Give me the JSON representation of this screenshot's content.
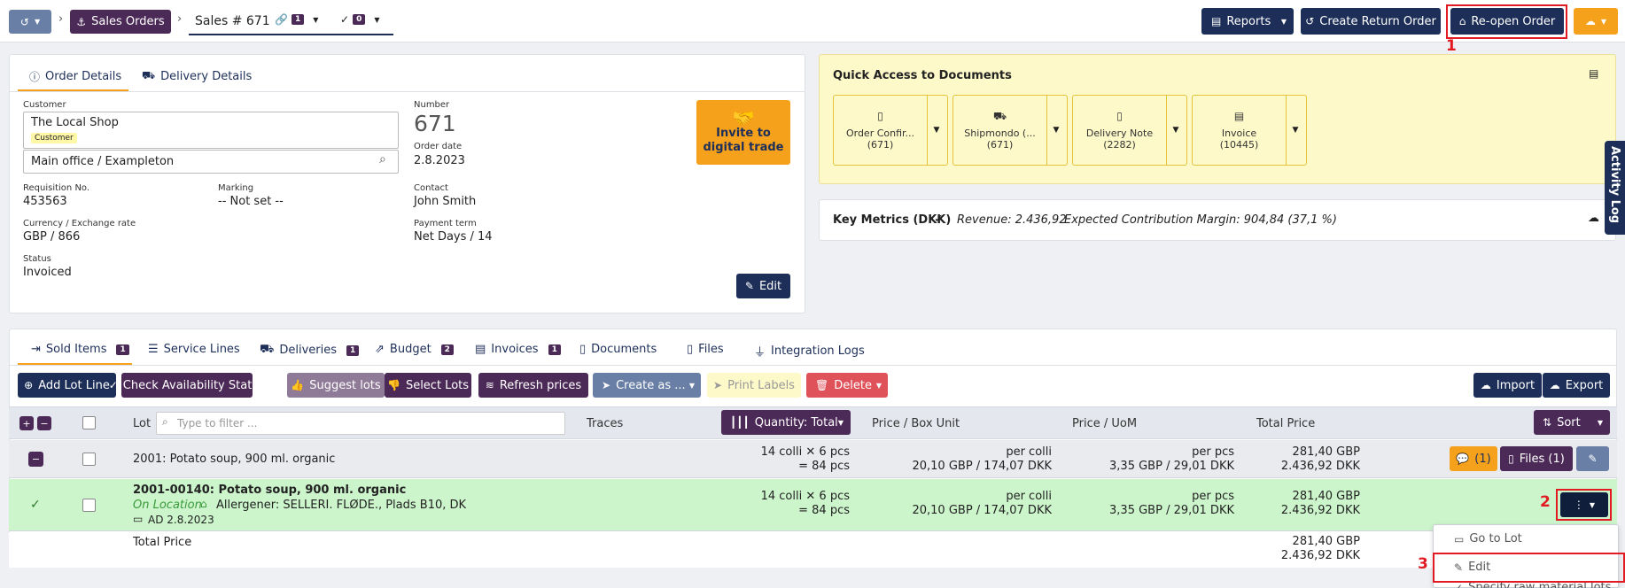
{
  "topbar": {
    "breadcrumb_root": "Sales Orders",
    "page_tab": "Sales # 671",
    "links_count": "1",
    "checks_count": "0",
    "reports": "Reports",
    "create_return": "Create Return Order",
    "reopen": "Re-open Order"
  },
  "order": {
    "tab_details": "Order Details",
    "tab_delivery": "Delivery Details",
    "customer_label": "Customer",
    "customer_name": "The Local Shop",
    "customer_tag": "Customer",
    "address": "Main office / Exampleton",
    "number_label": "Number",
    "number": "671",
    "order_date_label": "Order date",
    "order_date": "2.8.2023",
    "req_label": "Requisition No.",
    "req_value": "453563",
    "marking_label": "Marking",
    "marking_value": "-- Not set --",
    "contact_label": "Contact",
    "contact_value": "John Smith",
    "currency_label": "Currency / Exchange rate",
    "currency_value": "GBP / 866",
    "payment_label": "Payment term",
    "payment_value": "Net Days / 14",
    "status_label": "Status",
    "status_value": "Invoiced",
    "invite_line1": "Invite to",
    "invite_line2": "digital trade",
    "edit": "Edit"
  },
  "quick_access": {
    "title": "Quick Access to Documents",
    "docs": [
      {
        "name": "Order Confir...",
        "num": "(671)"
      },
      {
        "name": "Shipmondo (...",
        "num": "(671)"
      },
      {
        "name": "Delivery Note",
        "num": "(2282)"
      },
      {
        "name": "Invoice",
        "num": "(10445)"
      }
    ]
  },
  "metrics": {
    "label": "Key Metrics (DKK)",
    "revenue": "Revenue: 2.436,92",
    "margin": "Expected Contribution Margin: 904,84 (37,1 %)"
  },
  "activity_log": "Activity Log",
  "tabs": [
    {
      "label": "Sold Items",
      "badge": "1"
    },
    {
      "label": "Service Lines",
      "badge": ""
    },
    {
      "label": "Deliveries",
      "badge": "1"
    },
    {
      "label": "Budget",
      "badge": "2"
    },
    {
      "label": "Invoices",
      "badge": "1"
    },
    {
      "label": "Documents",
      "badge": ""
    },
    {
      "label": "Files",
      "badge": ""
    },
    {
      "label": "Integration Logs",
      "badge": ""
    }
  ],
  "toolbar": {
    "add_lot_line": "Add Lot Line",
    "check_availability": "Check Availability Status",
    "suggest_lots": "Suggest lots",
    "select_lots": "Select Lots",
    "refresh_prices": "Refresh prices",
    "create_as": "Create as ...",
    "print_labels": "Print Labels",
    "delete": "Delete",
    "import": "Import",
    "export": "Export"
  },
  "table": {
    "col_lot": "Lot",
    "filter_placeholder": "Type to filter ...",
    "col_traces": "Traces",
    "col_quantity": "Quantity: Total",
    "col_price_box": "Price / Box Unit",
    "col_price_uom": "Price / UoM",
    "col_total": "Total Price",
    "sort": "Sort",
    "group_row": {
      "title": "2001: Potato soup, 900 ml. organic",
      "qty1": "14 colli",
      "qty1b": "6 pcs",
      "qty2": "84 pcs",
      "box1": "per colli",
      "box2": "20,10 GBP / 174,07 DKK",
      "uom1": "per pcs",
      "uom2": "3,35 GBP / 29,01 DKK",
      "total1": "281,40 GBP",
      "total2": "2.436,92 DKK",
      "comments": "(1)",
      "files": "Files (1)"
    },
    "lot_row": {
      "title": "2001-00140: Potato soup, 900 ml. organic",
      "location": "On Location",
      "allergens": "Allergener: SELLERI. FLØDE., Plads B10, DK",
      "date": "AD 2.8.2023",
      "qty1": "14 colli",
      "qty1b": "6 pcs",
      "qty2": "84 pcs",
      "box1": "per colli",
      "box2": "20,10 GBP / 174,07 DKK",
      "uom1": "per pcs",
      "uom2": "3,35 GBP / 29,01 DKK",
      "total1": "281,40 GBP",
      "total2": "2.436,92 DKK"
    },
    "total_row": {
      "label": "Total Price",
      "total1": "281,40 GBP",
      "total2": "2.436,92 DKK"
    }
  },
  "dropdown": {
    "goto_lot": "Go to Lot",
    "edit": "Edit",
    "specify": "Specify raw material lots"
  },
  "annotations": {
    "n1": "1",
    "n2": "2",
    "n3": "3"
  },
  "colors": {
    "navy": "#1d2f59",
    "purple": "#4c2a57",
    "orange": "#f6a11b",
    "green_row": "#ccf5cc",
    "annotation_red": "#e21b23"
  }
}
